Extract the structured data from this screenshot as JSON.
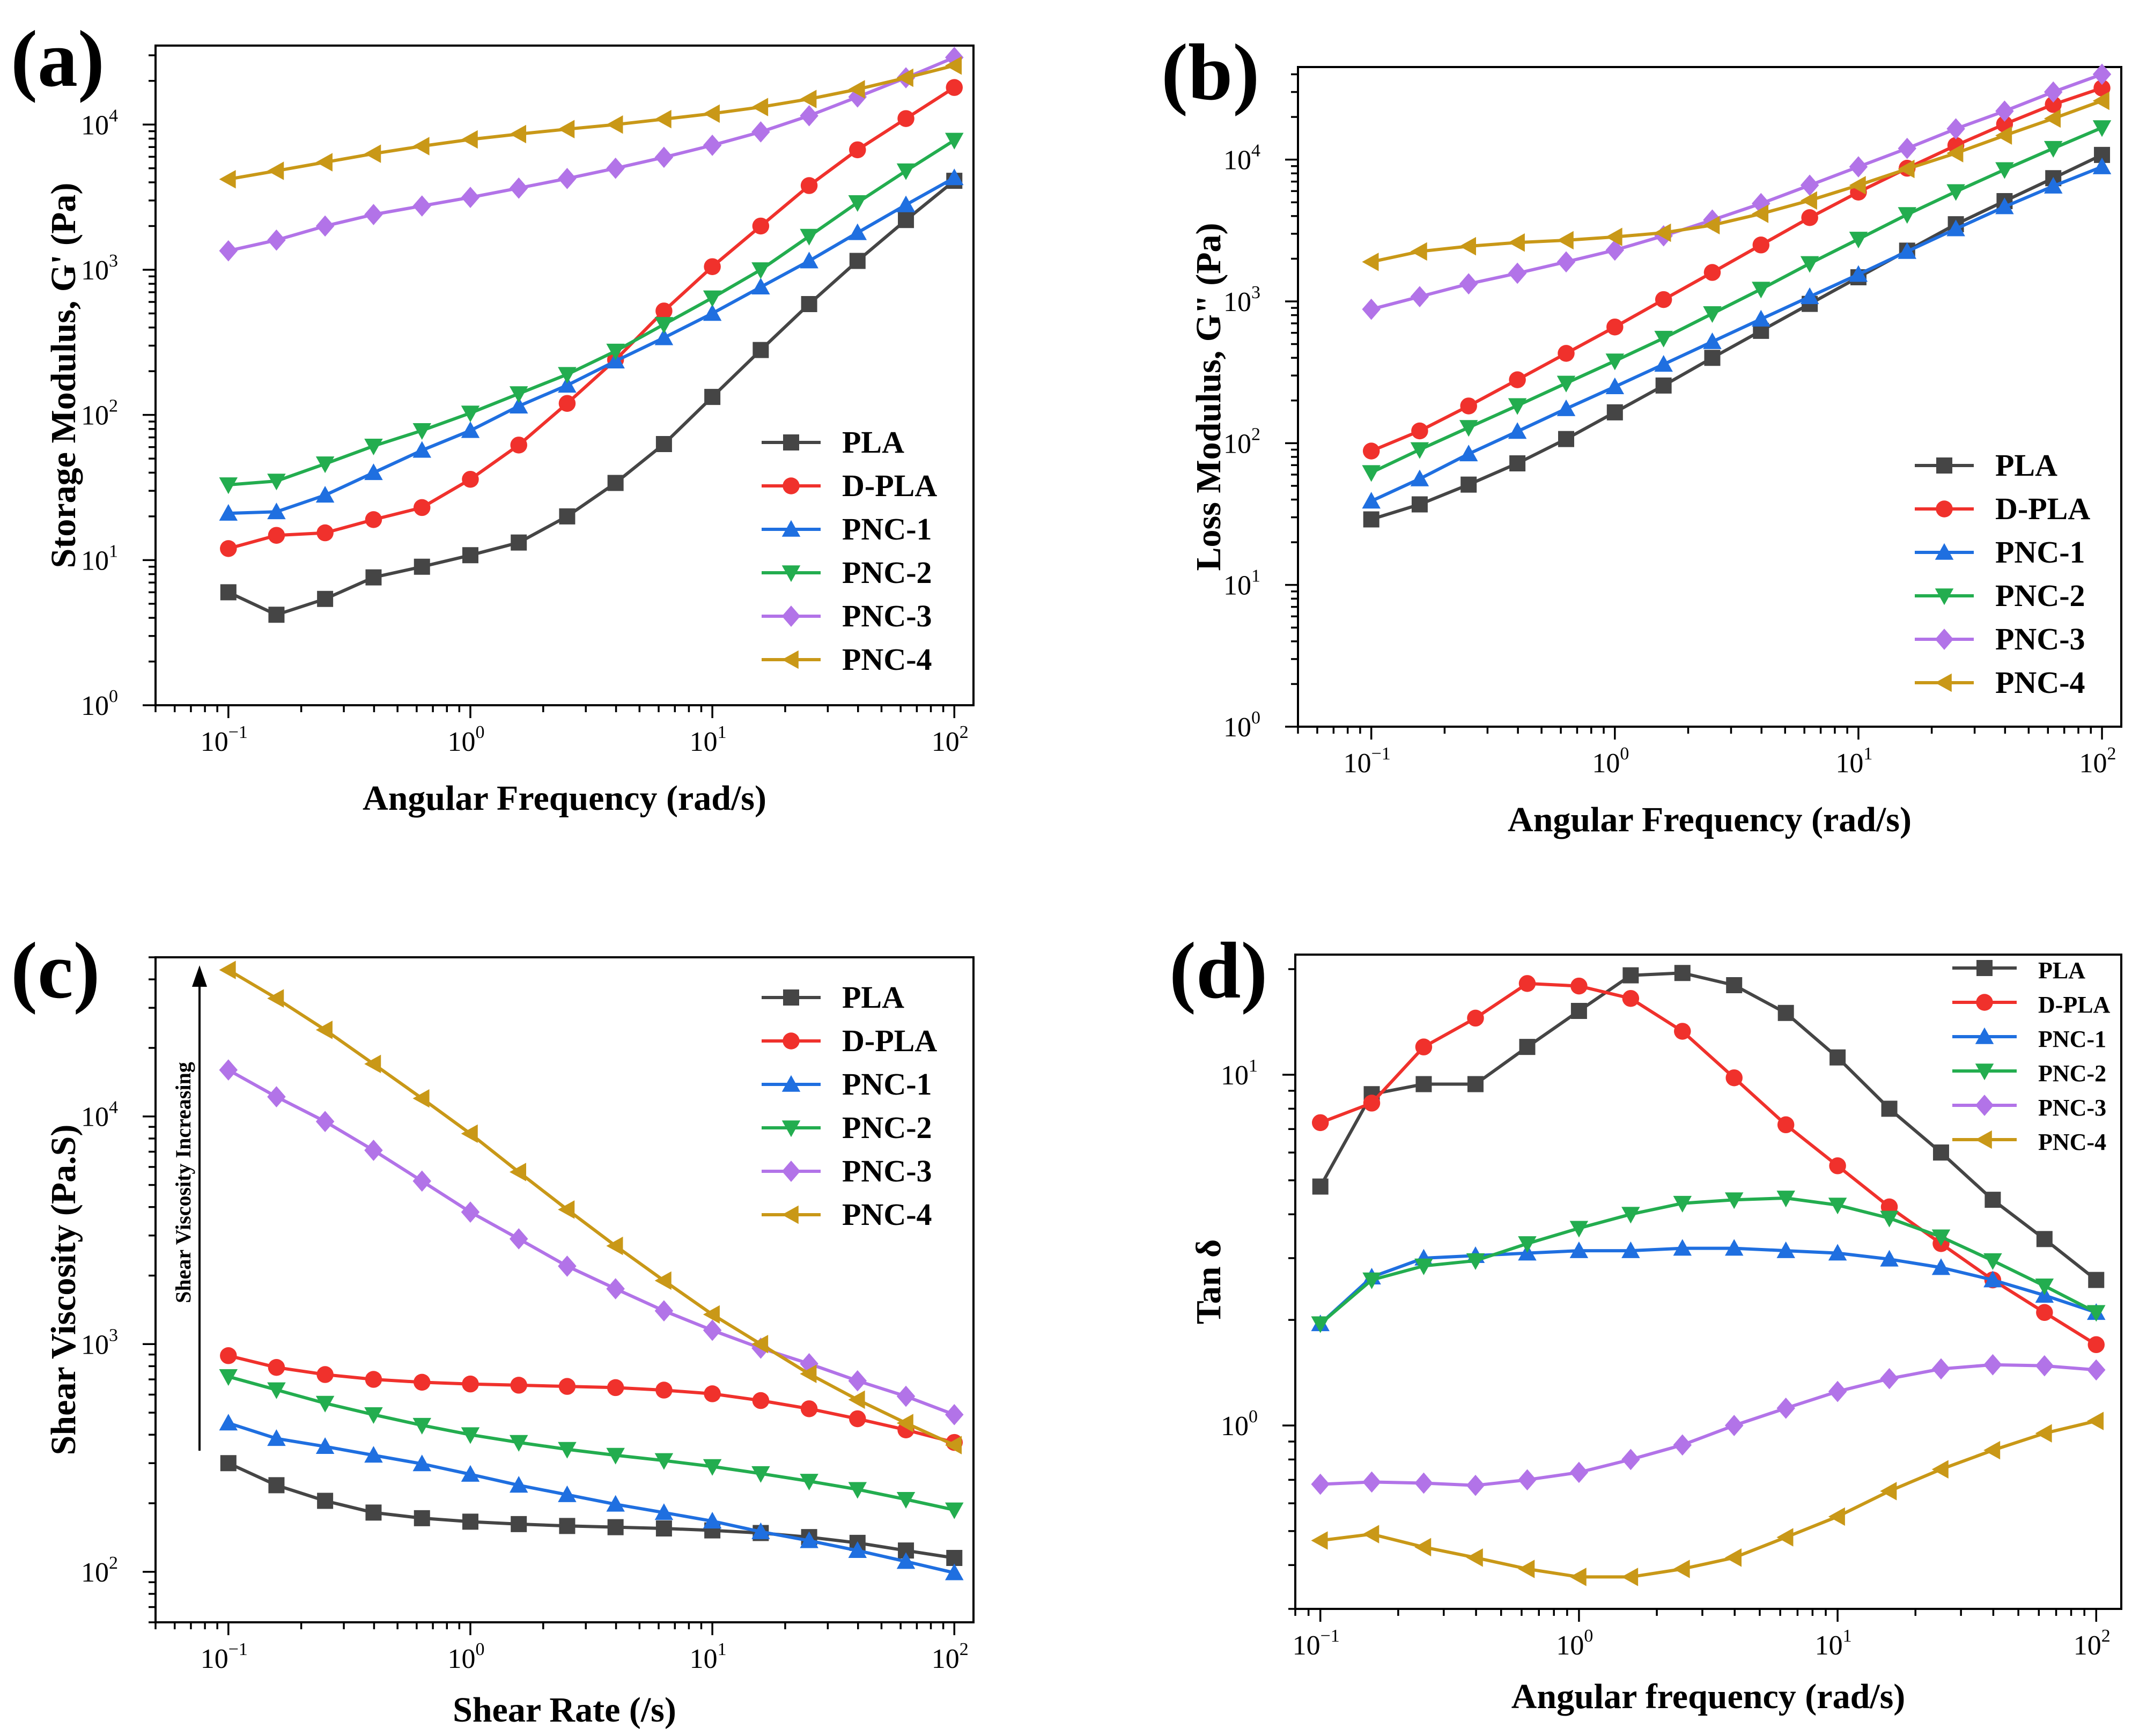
{
  "colors": {
    "PLA": "#454545",
    "D-PLA": "#f0312c",
    "PNC-1": "#1f6fe0",
    "PNC-2": "#23ad4f",
    "PNC-3": "#b273e8",
    "PNC-4": "#c99817"
  },
  "chart_data": [
    {
      "panel": "(a)",
      "type": "line",
      "xscale": "log",
      "yscale": "log",
      "xlabel": "Angular Frequency (rad/s)",
      "ylabel": "Storage Modulus, G' (Pa)",
      "xlim": [
        0.05,
        120
      ],
      "ylim": [
        1,
        35000
      ],
      "xticks": [
        {
          "base": "10",
          "exp": "−1"
        },
        {
          "base": "10",
          "exp": "0"
        },
        {
          "base": "10",
          "exp": "1"
        },
        {
          "base": "10",
          "exp": "2"
        }
      ],
      "yticks": [
        {
          "base": "10",
          "exp": "0"
        },
        {
          "base": "10",
          "exp": "1"
        },
        {
          "base": "10",
          "exp": "2"
        },
        {
          "base": "10",
          "exp": "3"
        },
        {
          "base": "10",
          "exp": "4"
        }
      ],
      "legend_position": "bottom-right",
      "x": [
        0.1,
        0.158,
        0.251,
        0.398,
        0.631,
        1.0,
        1.585,
        2.512,
        3.981,
        6.31,
        10.0,
        15.85,
        25.12,
        39.81,
        63.1,
        100
      ],
      "series": [
        {
          "name": "PLA",
          "marker": "square",
          "values": [
            6.0,
            4.2,
            5.4,
            7.6,
            9.0,
            10.8,
            13.2,
            20,
            34,
            63,
            133,
            280,
            580,
            1150,
            2200,
            4100
          ]
        },
        {
          "name": "D-PLA",
          "marker": "circle",
          "values": [
            12,
            14.8,
            15.4,
            19,
            23,
            36,
            62,
            120,
            240,
            520,
            1050,
            2000,
            3800,
            6700,
            11000,
            18000
          ]
        },
        {
          "name": "PNC-1",
          "marker": "triangle-up",
          "values": [
            21,
            21.5,
            28,
            40,
            57,
            78,
            115,
            160,
            235,
            340,
            500,
            760,
            1150,
            1800,
            2800,
            4300
          ]
        },
        {
          "name": "PNC-2",
          "marker": "triangle-down",
          "values": [
            33,
            35,
            46,
            61,
            78,
            103,
            140,
            190,
            275,
            420,
            640,
            1000,
            1700,
            2900,
            4800,
            7800
          ]
        },
        {
          "name": "PNC-3",
          "marker": "diamond",
          "values": [
            1350,
            1600,
            2000,
            2400,
            2750,
            3150,
            3650,
            4250,
            5000,
            5950,
            7200,
            8900,
            11500,
            15500,
            21000,
            29000
          ]
        },
        {
          "name": "PNC-4",
          "marker": "triangle-left",
          "values": [
            4200,
            4800,
            5500,
            6300,
            7100,
            7900,
            8600,
            9300,
            10000,
            10900,
            11900,
            13200,
            15000,
            17500,
            21000,
            25500
          ]
        }
      ]
    },
    {
      "panel": "(b)",
      "type": "line",
      "xscale": "log",
      "yscale": "log",
      "xlabel": "Angular Frequency (rad/s)",
      "ylabel": "Loss Modulus, G\" (Pa)",
      "xlim": [
        0.05,
        120
      ],
      "ylim": [
        1,
        45000
      ],
      "xticks": [
        {
          "base": "10",
          "exp": "−1"
        },
        {
          "base": "10",
          "exp": "0"
        },
        {
          "base": "10",
          "exp": "1"
        },
        {
          "base": "10",
          "exp": "2"
        }
      ],
      "yticks": [
        {
          "base": "10",
          "exp": "0"
        },
        {
          "base": "10",
          "exp": "1"
        },
        {
          "base": "10",
          "exp": "2"
        },
        {
          "base": "10",
          "exp": "3"
        },
        {
          "base": "10",
          "exp": "4"
        }
      ],
      "legend_position": "bottom-right",
      "x": [
        0.1,
        0.158,
        0.251,
        0.398,
        0.631,
        1.0,
        1.585,
        2.512,
        3.981,
        6.31,
        10.0,
        15.85,
        25.12,
        39.81,
        63.1,
        100
      ],
      "series": [
        {
          "name": "PLA",
          "marker": "square",
          "values": [
            29,
            37,
            51,
            72,
            107,
            165,
            255,
            400,
            620,
            960,
            1480,
            2280,
            3500,
            5100,
            7400,
            10800
          ]
        },
        {
          "name": "D-PLA",
          "marker": "circle",
          "values": [
            88,
            122,
            183,
            280,
            430,
            660,
            1030,
            1600,
            2500,
            3900,
            5900,
            8700,
            12600,
            17800,
            24500,
            32000
          ]
        },
        {
          "name": "PNC-1",
          "marker": "triangle-up",
          "values": [
            39,
            56,
            84,
            121,
            175,
            250,
            360,
            520,
            750,
            1080,
            1550,
            2250,
            3250,
            4650,
            6500,
            8900
          ]
        },
        {
          "name": "PNC-2",
          "marker": "triangle-down",
          "values": [
            62,
            90,
            129,
            184,
            265,
            380,
            550,
            820,
            1220,
            1850,
            2750,
            4100,
            5950,
            8500,
            12000,
            16800
          ]
        },
        {
          "name": "PNC-3",
          "marker": "diamond",
          "values": [
            880,
            1080,
            1330,
            1580,
            1900,
            2300,
            2900,
            3750,
            4900,
            6600,
            8900,
            12000,
            16500,
            22000,
            30000,
            40000
          ]
        },
        {
          "name": "PNC-4",
          "marker": "triangle-left",
          "values": [
            1900,
            2250,
            2450,
            2600,
            2700,
            2850,
            3050,
            3450,
            4150,
            5150,
            6600,
            8600,
            11100,
            14800,
            19500,
            26000
          ]
        }
      ]
    },
    {
      "panel": "(c)",
      "type": "line",
      "xscale": "log",
      "yscale": "log",
      "xlabel": "Shear Rate (/s)",
      "ylabel": "Shear Viscosity (Pa.S)",
      "xlim": [
        0.05,
        120
      ],
      "ylim": [
        60,
        50000
      ],
      "xticks": [
        {
          "base": "10",
          "exp": "−1"
        },
        {
          "base": "10",
          "exp": "0"
        },
        {
          "base": "10",
          "exp": "1"
        },
        {
          "base": "10",
          "exp": "2"
        }
      ],
      "yticks": [
        {
          "base": "10",
          "exp": "2"
        },
        {
          "base": "10",
          "exp": "3"
        },
        {
          "base": "10",
          "exp": "4"
        }
      ],
      "legend_position": "top-right",
      "annotation": "Shear Viscosity Increasing",
      "x": [
        0.1,
        0.158,
        0.251,
        0.398,
        0.631,
        1.0,
        1.585,
        2.512,
        3.981,
        6.31,
        10.0,
        15.85,
        25.12,
        39.81,
        63.1,
        100
      ],
      "series": [
        {
          "name": "PLA",
          "marker": "square",
          "values": [
            300,
            240,
            205,
            182,
            172,
            166,
            162,
            159,
            157,
            155,
            152,
            148,
            142,
            134,
            124,
            115
          ]
        },
        {
          "name": "D-PLA",
          "marker": "circle",
          "values": [
            890,
            790,
            735,
            700,
            680,
            668,
            660,
            652,
            644,
            628,
            605,
            565,
            520,
            470,
            420,
            370
          ]
        },
        {
          "name": "PNC-1",
          "marker": "triangle-up",
          "values": [
            450,
            385,
            355,
            325,
            298,
            268,
            240,
            218,
            198,
            182,
            167,
            150,
            137,
            124,
            111,
            99
          ]
        },
        {
          "name": "PNC-2",
          "marker": "triangle-down",
          "values": [
            720,
            630,
            550,
            490,
            440,
            400,
            370,
            345,
            325,
            308,
            290,
            270,
            250,
            230,
            208,
            187
          ]
        },
        {
          "name": "PNC-3",
          "marker": "diamond",
          "values": [
            16000,
            12200,
            9500,
            7100,
            5200,
            3800,
            2900,
            2200,
            1750,
            1400,
            1150,
            960,
            820,
            690,
            590,
            490
          ]
        },
        {
          "name": "PNC-4",
          "marker": "triangle-left",
          "values": [
            44000,
            33000,
            24000,
            17000,
            12000,
            8400,
            5700,
            3900,
            2700,
            1900,
            1350,
            1000,
            740,
            570,
            450,
            360
          ]
        }
      ]
    },
    {
      "panel": "(d)",
      "type": "line",
      "xscale": "log",
      "yscale": "log",
      "xlabel": "Angular frequency (rad/s)",
      "ylabel": "Tan δ",
      "xlim": [
        0.08,
        125
      ],
      "ylim": [
        0.3,
        22
      ],
      "xticks": [
        {
          "base": "10",
          "exp": "−1"
        },
        {
          "base": "10",
          "exp": "0"
        },
        {
          "base": "10",
          "exp": "1"
        },
        {
          "base": "10",
          "exp": "2"
        }
      ],
      "yticks": [
        {
          "base": "10",
          "exp": "0"
        },
        {
          "base": "10",
          "exp": "1"
        }
      ],
      "legend_position": "top-right",
      "x": [
        0.1,
        0.158,
        0.251,
        0.398,
        0.631,
        1.0,
        1.585,
        2.512,
        3.981,
        6.31,
        10.0,
        15.85,
        25.12,
        39.81,
        63.1,
        100
      ],
      "series": [
        {
          "name": "PLA",
          "marker": "square",
          "values": [
            4.8,
            8.8,
            9.4,
            9.4,
            12.0,
            15.2,
            19.2,
            19.5,
            18.0,
            15.0,
            11.2,
            8.0,
            6.0,
            4.4,
            3.4,
            2.6
          ]
        },
        {
          "name": "D-PLA",
          "marker": "circle",
          "values": [
            7.3,
            8.3,
            12.0,
            14.5,
            18.2,
            17.9,
            16.5,
            13.3,
            9.8,
            7.2,
            5.5,
            4.2,
            3.3,
            2.6,
            2.1,
            1.7
          ]
        },
        {
          "name": "PNC-1",
          "marker": "triangle-up",
          "values": [
            1.95,
            2.65,
            3.0,
            3.05,
            3.1,
            3.15,
            3.15,
            3.2,
            3.2,
            3.15,
            3.1,
            2.98,
            2.82,
            2.6,
            2.35,
            2.1
          ]
        },
        {
          "name": "PNC-2",
          "marker": "triangle-down",
          "values": [
            1.95,
            2.6,
            2.85,
            2.95,
            3.3,
            3.65,
            4.0,
            4.3,
            4.4,
            4.45,
            4.25,
            3.9,
            3.45,
            2.95,
            2.5,
            2.1
          ]
        },
        {
          "name": "PNC-3",
          "marker": "diamond",
          "values": [
            0.68,
            0.69,
            0.685,
            0.675,
            0.7,
            0.735,
            0.8,
            0.88,
            1.0,
            1.12,
            1.25,
            1.36,
            1.45,
            1.49,
            1.48,
            1.44
          ]
        },
        {
          "name": "PNC-4",
          "marker": "triangle-left",
          "values": [
            0.47,
            0.49,
            0.45,
            0.42,
            0.39,
            0.37,
            0.37,
            0.39,
            0.42,
            0.48,
            0.55,
            0.65,
            0.75,
            0.85,
            0.95,
            1.03
          ]
        }
      ]
    }
  ]
}
